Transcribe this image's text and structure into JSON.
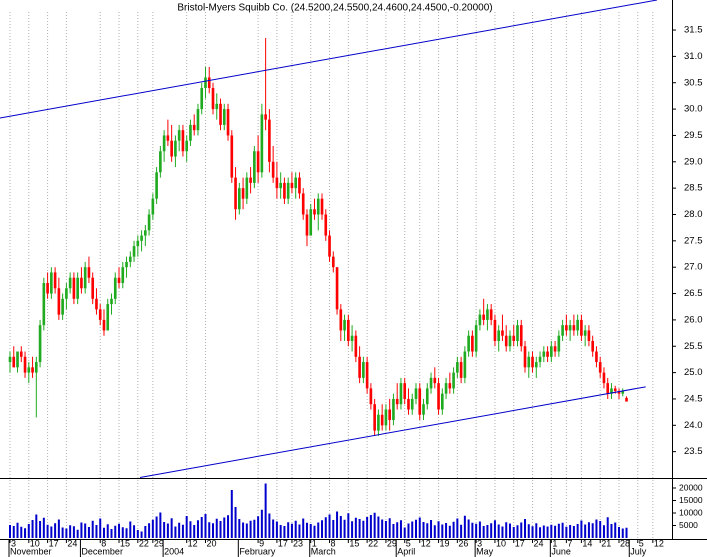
{
  "chart_data": {
    "type": "candlestick",
    "title": "Bristol-Myers Squibb Co. (24.5200,24.5500,24.4600,24.4500,-0.20000)",
    "ohlc": [
      [
        25.2,
        25.4,
        25.0,
        25.3
      ],
      [
        25.3,
        25.5,
        25.1,
        25.1
      ],
      [
        25.1,
        25.4,
        25.0,
        25.4
      ],
      [
        25.4,
        25.5,
        25.2,
        25.3
      ],
      [
        25.3,
        25.4,
        24.9,
        25.0
      ],
      [
        25.0,
        25.2,
        24.8,
        25.1
      ],
      [
        25.1,
        25.3,
        24.9,
        25.0
      ],
      [
        25.0,
        25.3,
        24.15,
        25.2
      ],
      [
        25.2,
        26.0,
        25.1,
        25.9
      ],
      [
        25.9,
        26.8,
        25.8,
        26.7
      ],
      [
        26.7,
        26.9,
        26.4,
        26.5
      ],
      [
        26.5,
        27.0,
        26.4,
        26.9
      ],
      [
        26.9,
        27.0,
        26.5,
        26.6
      ],
      [
        26.6,
        26.8,
        26.0,
        26.1
      ],
      [
        26.1,
        26.5,
        26.0,
        26.4
      ],
      [
        26.4,
        26.7,
        26.2,
        26.6
      ],
      [
        26.6,
        26.9,
        26.5,
        26.8
      ],
      [
        26.8,
        26.9,
        26.3,
        26.4
      ],
      [
        26.4,
        26.9,
        26.3,
        26.8
      ],
      [
        26.8,
        27.0,
        26.5,
        26.6
      ],
      [
        26.6,
        27.1,
        26.5,
        27.0
      ],
      [
        27.0,
        27.2,
        26.7,
        26.8
      ],
      [
        26.8,
        26.9,
        26.3,
        26.4
      ],
      [
        26.4,
        26.6,
        26.1,
        26.2
      ],
      [
        26.2,
        26.3,
        25.9,
        26.0
      ],
      [
        26.0,
        26.2,
        25.7,
        25.8
      ],
      [
        25.8,
        26.4,
        25.8,
        26.3
      ],
      [
        26.3,
        26.5,
        26.1,
        26.4
      ],
      [
        26.4,
        26.9,
        26.3,
        26.8
      ],
      [
        26.8,
        27.0,
        26.6,
        26.7
      ],
      [
        26.7,
        27.1,
        26.6,
        27.0
      ],
      [
        27.0,
        27.2,
        26.8,
        27.1
      ],
      [
        27.1,
        27.3,
        27.0,
        27.2
      ],
      [
        27.2,
        27.5,
        27.1,
        27.4
      ],
      [
        27.4,
        27.6,
        27.2,
        27.5
      ],
      [
        27.5,
        27.7,
        27.3,
        27.6
      ],
      [
        27.6,
        27.8,
        27.4,
        27.7
      ],
      [
        27.7,
        28.1,
        27.6,
        28.0
      ],
      [
        28.0,
        28.4,
        27.9,
        28.3
      ],
      [
        28.3,
        28.9,
        28.2,
        28.8
      ],
      [
        28.8,
        29.3,
        28.7,
        29.2
      ],
      [
        29.2,
        29.6,
        29.0,
        29.5
      ],
      [
        29.5,
        29.8,
        29.3,
        29.4
      ],
      [
        29.4,
        29.7,
        29.0,
        29.1
      ],
      [
        29.1,
        29.5,
        28.9,
        29.4
      ],
      [
        29.4,
        29.7,
        29.2,
        29.6
      ],
      [
        29.6,
        29.7,
        29.1,
        29.2
      ],
      [
        29.2,
        29.5,
        29.0,
        29.4
      ],
      [
        29.4,
        29.8,
        29.3,
        29.7
      ],
      [
        29.7,
        29.9,
        29.5,
        29.6
      ],
      [
        29.6,
        30.1,
        29.5,
        30.0
      ],
      [
        30.0,
        30.5,
        29.9,
        30.4
      ],
      [
        30.4,
        30.8,
        30.2,
        30.6
      ],
      [
        30.6,
        30.8,
        30.3,
        30.4
      ],
      [
        30.4,
        30.5,
        29.9,
        30.0
      ],
      [
        30.0,
        30.3,
        29.8,
        30.1
      ],
      [
        30.1,
        30.2,
        29.6,
        29.7
      ],
      [
        29.7,
        30.1,
        29.6,
        30.0
      ],
      [
        30.0,
        30.1,
        29.4,
        29.5
      ],
      [
        29.5,
        29.6,
        28.6,
        28.7
      ],
      [
        28.7,
        28.9,
        27.9,
        28.1
      ],
      [
        28.1,
        28.6,
        28.0,
        28.5
      ],
      [
        28.5,
        28.7,
        28.1,
        28.3
      ],
      [
        28.3,
        28.8,
        28.2,
        28.7
      ],
      [
        28.7,
        28.9,
        28.4,
        28.6
      ],
      [
        28.6,
        29.3,
        28.5,
        29.2
      ],
      [
        29.2,
        29.5,
        28.6,
        28.8
      ],
      [
        28.8,
        30.1,
        28.7,
        29.9
      ],
      [
        29.9,
        31.35,
        29.6,
        29.8
      ],
      [
        29.8,
        30.0,
        28.8,
        29.0
      ],
      [
        29.0,
        29.3,
        28.6,
        28.7
      ],
      [
        28.7,
        29.0,
        28.3,
        28.5
      ],
      [
        28.5,
        28.8,
        28.3,
        28.6
      ],
      [
        28.6,
        28.7,
        28.2,
        28.3
      ],
      [
        28.3,
        28.7,
        28.2,
        28.6
      ],
      [
        28.6,
        28.8,
        28.4,
        28.5
      ],
      [
        28.5,
        28.8,
        28.3,
        28.7
      ],
      [
        28.7,
        28.8,
        28.3,
        28.4
      ],
      [
        28.4,
        28.5,
        27.9,
        28.0
      ],
      [
        28.0,
        28.1,
        27.4,
        27.6
      ],
      [
        27.6,
        28.2,
        27.6,
        28.1
      ],
      [
        28.1,
        28.3,
        27.9,
        28.0
      ],
      [
        28.0,
        28.4,
        27.7,
        28.3
      ],
      [
        28.3,
        28.4,
        27.9,
        28.0
      ],
      [
        28.0,
        28.1,
        27.5,
        27.6
      ],
      [
        27.6,
        27.7,
        27.1,
        27.2
      ],
      [
        27.2,
        27.3,
        26.9,
        27.0
      ],
      [
        27.0,
        27.0,
        26.1,
        26.2
      ],
      [
        26.2,
        26.3,
        25.6,
        25.8
      ],
      [
        25.8,
        26.1,
        25.6,
        26.0
      ],
      [
        26.0,
        26.1,
        25.5,
        25.6
      ],
      [
        25.6,
        25.9,
        25.4,
        25.7
      ],
      [
        25.7,
        25.8,
        25.2,
        25.3
      ],
      [
        25.3,
        25.5,
        24.8,
        24.9
      ],
      [
        24.9,
        25.3,
        24.8,
        25.2
      ],
      [
        25.2,
        25.3,
        24.6,
        24.7
      ],
      [
        24.7,
        24.8,
        24.3,
        24.4
      ],
      [
        24.4,
        24.5,
        23.8,
        23.9
      ],
      [
        23.9,
        24.3,
        23.8,
        24.2
      ],
      [
        24.2,
        24.4,
        23.9,
        24.0
      ],
      [
        24.0,
        24.4,
        23.9,
        24.3
      ],
      [
        24.3,
        24.5,
        23.9,
        24.1
      ],
      [
        24.1,
        24.6,
        24.0,
        24.5
      ],
      [
        24.5,
        24.8,
        24.3,
        24.4
      ],
      [
        24.4,
        24.9,
        24.3,
        24.8
      ],
      [
        24.8,
        24.9,
        24.4,
        24.5
      ],
      [
        24.5,
        24.7,
        24.2,
        24.3
      ],
      [
        24.3,
        24.6,
        24.2,
        24.5
      ],
      [
        24.5,
        24.8,
        24.4,
        24.7
      ],
      [
        24.7,
        24.8,
        24.1,
        24.2
      ],
      [
        24.2,
        24.5,
        24.1,
        24.4
      ],
      [
        24.4,
        24.8,
        24.3,
        24.7
      ],
      [
        24.7,
        25.0,
        24.6,
        24.9
      ],
      [
        24.9,
        25.1,
        24.7,
        24.8
      ],
      [
        24.8,
        24.9,
        24.2,
        24.3
      ],
      [
        24.3,
        24.7,
        24.2,
        24.6
      ],
      [
        24.6,
        24.9,
        24.5,
        24.8
      ],
      [
        24.8,
        25.0,
        24.6,
        24.7
      ],
      [
        24.7,
        25.1,
        24.6,
        25.0
      ],
      [
        25.0,
        25.3,
        24.9,
        25.2
      ],
      [
        25.2,
        25.3,
        24.8,
        24.9
      ],
      [
        24.9,
        25.5,
        24.8,
        25.4
      ],
      [
        25.4,
        25.8,
        25.3,
        25.7
      ],
      [
        25.7,
        25.8,
        25.3,
        25.4
      ],
      [
        25.4,
        26.0,
        25.3,
        25.9
      ],
      [
        25.9,
        26.2,
        25.8,
        26.1
      ],
      [
        26.1,
        26.4,
        25.9,
        26.0
      ],
      [
        26.0,
        26.3,
        25.8,
        26.2
      ],
      [
        26.2,
        26.3,
        25.9,
        26.0
      ],
      [
        26.0,
        26.1,
        25.5,
        25.6
      ],
      [
        25.6,
        25.9,
        25.4,
        25.8
      ],
      [
        25.8,
        26.1,
        25.6,
        25.7
      ],
      [
        25.7,
        25.9,
        25.4,
        25.5
      ],
      [
        25.5,
        25.8,
        25.4,
        25.7
      ],
      [
        25.7,
        25.9,
        25.5,
        25.6
      ],
      [
        25.6,
        26.0,
        25.5,
        25.9
      ],
      [
        25.9,
        26.0,
        25.4,
        25.5
      ],
      [
        25.5,
        25.6,
        25.0,
        25.1
      ],
      [
        25.1,
        25.4,
        24.9,
        25.3
      ],
      [
        25.3,
        25.4,
        25.0,
        25.1
      ],
      [
        25.1,
        25.3,
        24.9,
        25.2
      ],
      [
        25.2,
        25.4,
        25.1,
        25.3
      ],
      [
        25.3,
        25.5,
        25.2,
        25.4
      ],
      [
        25.4,
        25.5,
        25.2,
        25.3
      ],
      [
        25.3,
        25.6,
        25.2,
        25.5
      ],
      [
        25.5,
        25.6,
        25.3,
        25.4
      ],
      [
        25.4,
        25.8,
        25.3,
        25.7
      ],
      [
        25.7,
        26.0,
        25.6,
        25.9
      ],
      [
        25.9,
        26.1,
        25.7,
        25.8
      ],
      [
        25.8,
        26.0,
        25.6,
        25.9
      ],
      [
        25.9,
        26.1,
        25.7,
        25.8
      ],
      [
        25.8,
        26.1,
        25.7,
        26.0
      ],
      [
        26.0,
        26.1,
        25.6,
        25.7
      ],
      [
        25.7,
        25.9,
        25.5,
        25.8
      ],
      [
        25.8,
        25.9,
        25.5,
        25.6
      ],
      [
        25.6,
        25.7,
        25.3,
        25.4
      ],
      [
        25.4,
        25.5,
        25.1,
        25.2
      ],
      [
        25.2,
        25.3,
        24.9,
        25.0
      ],
      [
        25.0,
        25.1,
        24.7,
        24.8
      ],
      [
        24.8,
        24.9,
        24.5,
        24.6
      ],
      [
        24.6,
        24.8,
        24.5,
        24.7
      ],
      [
        24.7,
        24.75,
        24.6,
        24.65
      ],
      [
        24.65,
        24.7,
        24.5,
        24.6
      ],
      [
        24.6,
        24.7,
        24.55,
        24.65
      ],
      [
        24.52,
        24.55,
        24.46,
        24.45
      ]
    ],
    "volume": [
      5200,
      4800,
      6100,
      4500,
      3900,
      5600,
      7200,
      9400,
      6800,
      8100,
      5300,
      4600,
      5900,
      7400,
      4200,
      3800,
      5100,
      4700,
      3300,
      6200,
      5800,
      4400,
      6900,
      5200,
      7800,
      4100,
      5500,
      3600,
      4900,
      5700,
      4300,
      3900,
      6600,
      5100,
      3200,
      2600,
      4800,
      5900,
      7300,
      8600,
      10200,
      6400,
      5800,
      7900,
      4600,
      6100,
      5300,
      8800,
      6700,
      5200,
      7100,
      8400,
      9600,
      6300,
      5900,
      7700,
      6800,
      8200,
      9100,
      19200,
      12400,
      7600,
      6200,
      5800,
      6900,
      7300,
      8700,
      11300,
      21800,
      9800,
      7400,
      6600,
      5200,
      4800,
      6300,
      5700,
      6900,
      5400,
      7800,
      6100,
      5600,
      4900,
      6200,
      7100,
      8300,
      9400,
      7200,
      10600,
      8800,
      7300,
      9900,
      6700,
      8100,
      7600,
      6900,
      8400,
      9200,
      10100,
      8600,
      7400,
      6800,
      7900,
      5600,
      6300,
      7100,
      4200,
      5800,
      6600,
      7300,
      8200,
      6400,
      5900,
      7200,
      5100,
      6700,
      5400,
      6000,
      4900,
      6500,
      7800,
      5300,
      8900,
      7400,
      6100,
      5700,
      6600,
      4800,
      5200,
      5900,
      7100,
      5400,
      4600,
      6300,
      5800,
      4400,
      5100,
      6200,
      7600,
      5500,
      4700,
      5900,
      4300,
      5000,
      4600,
      5300,
      4900,
      5700,
      6100,
      4500,
      5200,
      4800,
      5600,
      7000,
      5400,
      6300,
      5900,
      7400,
      6800,
      5100,
      8300,
      5600,
      6200,
      4400,
      3800,
      4100
    ],
    "up_color": "#1faa1f",
    "down_color": "#ff0000",
    "volume_color": "#0000cc",
    "trendline_color": "#0000cc",
    "grid": true,
    "xlim": [
      -2.66,
      176.1
    ],
    "ylim": [
      23.0,
      32.07
    ],
    "yticks": [
      23.5,
      {
        "value": 24,
        "label": "24.0"
      },
      24.5,
      {
        "value": 25,
        "label": "25.0"
      },
      25.5,
      {
        "value": 26,
        "label": "26.0"
      },
      26.5,
      {
        "value": 27,
        "label": "27.0"
      },
      27.5,
      {
        "value": 28,
        "label": "28.0"
      },
      28.5,
      {
        "value": 29,
        "label": "29.0"
      },
      29.5,
      {
        "value": 30,
        "label": "30.0"
      },
      30.5,
      {
        "value": 31,
        "label": "31.0"
      },
      31.5
    ],
    "volume_ylim": [
      0,
      23200
    ],
    "volume_yticks": [
      5000,
      10000,
      15000,
      20000
    ],
    "day_ticks": [
      {
        "value": 0,
        "label": "3"
      },
      {
        "value": 5,
        "label": "10"
      },
      {
        "value": 10,
        "label": "17"
      },
      {
        "value": 15,
        "label": "24"
      },
      {
        "value": 24,
        "label": "8"
      },
      {
        "value": 29,
        "label": "15"
      },
      {
        "value": 34,
        "label": "22"
      },
      {
        "value": 38,
        "label": "29"
      },
      {
        "value": 47,
        "label": "12"
      },
      {
        "value": 52,
        "label": "20"
      },
      {
        "value": 66,
        "label": "9"
      },
      {
        "value": 71,
        "label": "17"
      },
      {
        "value": 75,
        "label": "23"
      },
      {
        "value": 80,
        "label": "1"
      },
      {
        "value": 85,
        "label": "8"
      },
      {
        "value": 90,
        "label": "15"
      },
      {
        "value": 95,
        "label": "22"
      },
      {
        "value": 100,
        "label": "29"
      },
      {
        "value": 105,
        "label": "5"
      },
      {
        "value": 109,
        "label": "12"
      },
      {
        "value": 114,
        "label": "19"
      },
      {
        "value": 119,
        "label": "26"
      },
      {
        "value": 124,
        "label": "3"
      },
      {
        "value": 129,
        "label": "10"
      },
      {
        "value": 134,
        "label": "17"
      },
      {
        "value": 139,
        "label": "24"
      },
      {
        "value": 144,
        "label": "1"
      },
      {
        "value": 148,
        "label": "7"
      },
      {
        "value": 152,
        "label": "14"
      },
      {
        "value": 157,
        "label": "21"
      },
      {
        "value": 162,
        "label": "28"
      },
      {
        "value": 167,
        "label": "5"
      },
      {
        "value": 171,
        "label": "12"
      }
    ],
    "month_ticks": [
      {
        "value": 0,
        "label": "November"
      },
      {
        "value": 19,
        "label": "December"
      },
      {
        "value": 41,
        "label": "2004"
      },
      {
        "value": 61,
        "label": "February"
      },
      {
        "value": 80,
        "label": "March"
      },
      {
        "value": 103,
        "label": "April"
      },
      {
        "value": 124,
        "label": "May"
      },
      {
        "value": 144,
        "label": "June"
      },
      {
        "value": 165,
        "label": "July"
      }
    ],
    "trendlines": [
      {
        "x1": -2.66,
        "y1": 29.83,
        "x2": 172.1,
        "y2": 32.07
      },
      {
        "x1": 34.6,
        "y1": 23.01,
        "x2": 169.1,
        "y2": 24.73
      }
    ]
  }
}
